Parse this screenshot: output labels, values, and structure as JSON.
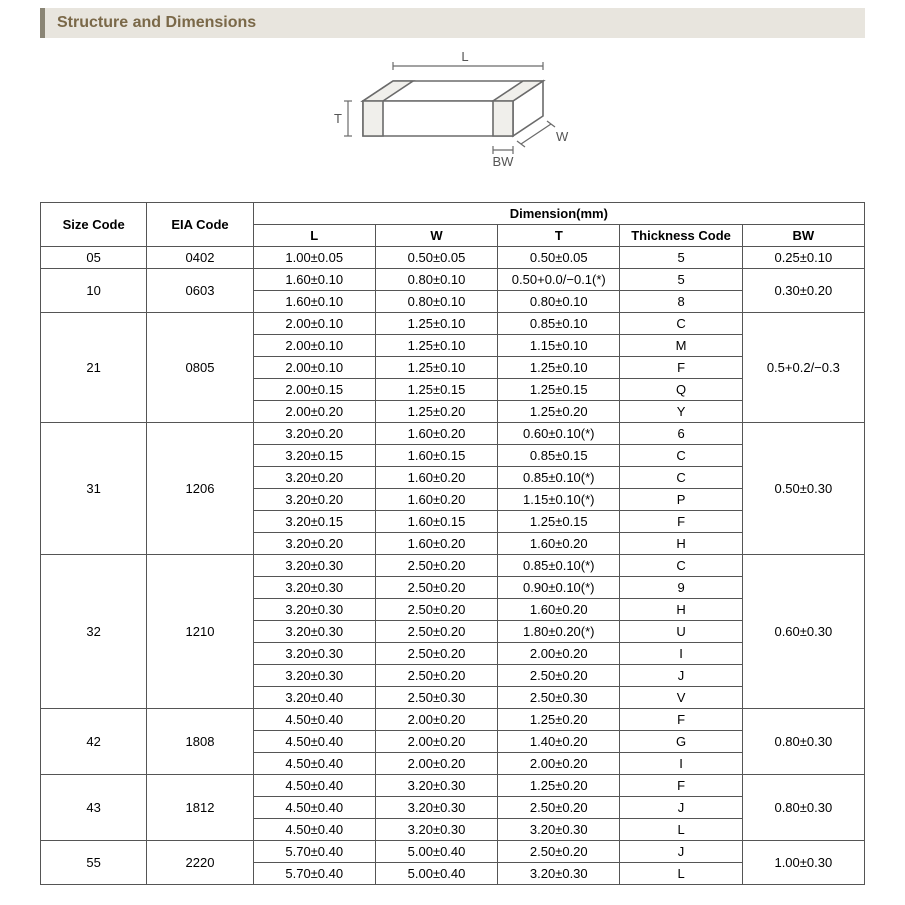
{
  "header": {
    "title": "Structure and Dimensions"
  },
  "diagram": {
    "labels": {
      "L": "L",
      "W": "W",
      "T": "T",
      "BW": "BW"
    },
    "stroke": "#6b6b6b",
    "fill": "#ffffff",
    "text_color": "#555555"
  },
  "table": {
    "header_row1": {
      "size_code": "Size Code",
      "eia_code": "EIA Code",
      "dimension": "Dimension(mm)"
    },
    "header_row2": {
      "L": "L",
      "W": "W",
      "T": "T",
      "TC": "Thickness  Code",
      "BW": "BW"
    },
    "groups": [
      {
        "size": "05",
        "eia": "0402",
        "bw": "0.25±0.10",
        "rows": [
          {
            "L": "1.00±0.05",
            "W": "0.50±0.05",
            "T": "0.50±0.05",
            "TC": "5"
          }
        ]
      },
      {
        "size": "10",
        "eia": "0603",
        "bw": "0.30±0.20",
        "rows": [
          {
            "L": "1.60±0.10",
            "W": "0.80±0.10",
            "T": "0.50+0.0/−0.1(*)",
            "TC": "5"
          },
          {
            "L": "1.60±0.10",
            "W": "0.80±0.10",
            "T": "0.80±0.10",
            "TC": "8"
          }
        ]
      },
      {
        "size": "21",
        "eia": "0805",
        "bw": "0.5+0.2/−0.3",
        "rows": [
          {
            "L": "2.00±0.10",
            "W": "1.25±0.10",
            "T": "0.85±0.10",
            "TC": "C"
          },
          {
            "L": "2.00±0.10",
            "W": "1.25±0.10",
            "T": "1.15±0.10",
            "TC": "M"
          },
          {
            "L": "2.00±0.10",
            "W": "1.25±0.10",
            "T": "1.25±0.10",
            "TC": "F"
          },
          {
            "L": "2.00±0.15",
            "W": "1.25±0.15",
            "T": "1.25±0.15",
            "TC": "Q"
          },
          {
            "L": "2.00±0.20",
            "W": "1.25±0.20",
            "T": "1.25±0.20",
            "TC": "Y"
          }
        ]
      },
      {
        "size": "31",
        "eia": "1206",
        "bw": "0.50±0.30",
        "rows": [
          {
            "L": "3.20±0.20",
            "W": "1.60±0.20",
            "T": "0.60±0.10(*)",
            "TC": "6"
          },
          {
            "L": "3.20±0.15",
            "W": "1.60±0.15",
            "T": "0.85±0.15",
            "TC": "C"
          },
          {
            "L": "3.20±0.20",
            "W": "1.60±0.20",
            "T": "0.85±0.10(*)",
            "TC": "C"
          },
          {
            "L": "3.20±0.20",
            "W": "1.60±0.20",
            "T": "1.15±0.10(*)",
            "TC": "P"
          },
          {
            "L": "3.20±0.15",
            "W": "1.60±0.15",
            "T": "1.25±0.15",
            "TC": "F"
          },
          {
            "L": "3.20±0.20",
            "W": "1.60±0.20",
            "T": "1.60±0.20",
            "TC": "H"
          }
        ]
      },
      {
        "size": "32",
        "eia": "1210",
        "bw": "0.60±0.30",
        "rows": [
          {
            "L": "3.20±0.30",
            "W": "2.50±0.20",
            "T": "0.85±0.10(*)",
            "TC": "C"
          },
          {
            "L": "3.20±0.30",
            "W": "2.50±0.20",
            "T": "0.90±0.10(*)",
            "TC": "9"
          },
          {
            "L": "3.20±0.30",
            "W": "2.50±0.20",
            "T": "1.60±0.20",
            "TC": "H"
          },
          {
            "L": "3.20±0.30",
            "W": "2.50±0.20",
            "T": "1.80±0.20(*)",
            "TC": "U"
          },
          {
            "L": "3.20±0.30",
            "W": "2.50±0.20",
            "T": "2.00±0.20",
            "TC": "I"
          },
          {
            "L": "3.20±0.30",
            "W": "2.50±0.20",
            "T": "2.50±0.20",
            "TC": "J"
          },
          {
            "L": "3.20±0.40",
            "W": "2.50±0.30",
            "T": "2.50±0.30",
            "TC": "V"
          }
        ]
      },
      {
        "size": "42",
        "eia": "1808",
        "bw": "0.80±0.30",
        "rows": [
          {
            "L": "4.50±0.40",
            "W": "2.00±0.20",
            "T": "1.25±0.20",
            "TC": "F"
          },
          {
            "L": "4.50±0.40",
            "W": "2.00±0.20",
            "T": "1.40±0.20",
            "TC": "G"
          },
          {
            "L": "4.50±0.40",
            "W": "2.00±0.20",
            "T": "2.00±0.20",
            "TC": "I"
          }
        ]
      },
      {
        "size": "43",
        "eia": "1812",
        "bw": "0.80±0.30",
        "rows": [
          {
            "L": "4.50±0.40",
            "W": "3.20±0.30",
            "T": "1.25±0.20",
            "TC": "F"
          },
          {
            "L": "4.50±0.40",
            "W": "3.20±0.30",
            "T": "2.50±0.20",
            "TC": "J"
          },
          {
            "L": "4.50±0.40",
            "W": "3.20±0.30",
            "T": "3.20±0.30",
            "TC": "L"
          }
        ]
      },
      {
        "size": "55",
        "eia": "2220",
        "bw": "1.00±0.30",
        "rows": [
          {
            "L": "5.70±0.40",
            "W": "5.00±0.40",
            "T": "2.50±0.20",
            "TC": "J"
          },
          {
            "L": "5.70±0.40",
            "W": "5.00±0.40",
            "T": "3.20±0.30",
            "TC": "L"
          }
        ]
      }
    ]
  },
  "colors": {
    "header_bg": "#e8e5de",
    "header_border": "#8a8575",
    "header_text": "#7a6848",
    "table_border": "#555555"
  }
}
